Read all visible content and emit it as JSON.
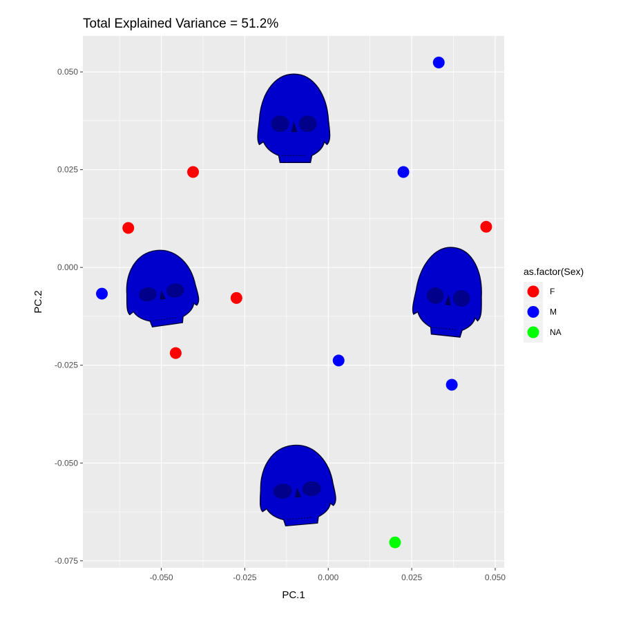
{
  "chart_data": {
    "type": "scatter",
    "title": "Total Explained Variance = 51.2%",
    "xlabel": "PC.1",
    "ylabel": "PC.2",
    "xlim": [
      -0.0735,
      0.0527
    ],
    "ylim": [
      -0.0768,
      0.0592
    ],
    "xticks": [
      -0.05,
      -0.025,
      0.0,
      0.025,
      0.05
    ],
    "xtick_labels": [
      "-0.050",
      "-0.025",
      "0.000",
      "0.025",
      "0.050"
    ],
    "yticks": [
      0.05,
      0.025,
      0.0,
      -0.025,
      -0.05,
      -0.075
    ],
    "ytick_labels": [
      "0.050",
      "0.025",
      "0.000",
      "-0.025",
      "-0.050",
      "-0.075"
    ],
    "grid": true,
    "legend": {
      "title": "as.factor(Sex)",
      "placement": "right",
      "entries": [
        {
          "label": "F",
          "color": "#ff0000"
        },
        {
          "label": "M",
          "color": "#0000ff"
        },
        {
          "label": "NA",
          "color": "#00ff00"
        }
      ]
    },
    "series": [
      {
        "name": "F",
        "color": "#ff0000",
        "points": [
          [
            -0.0405,
            0.0244
          ],
          [
            -0.0599,
            0.0101
          ],
          [
            -0.0275,
            -0.0078
          ],
          [
            -0.0457,
            -0.0219
          ],
          [
            0.0473,
            0.0104
          ]
        ]
      },
      {
        "name": "M",
        "color": "#0000ff",
        "points": [
          [
            -0.0678,
            -0.0067
          ],
          [
            0.0331,
            0.0524
          ],
          [
            0.0225,
            0.0244
          ],
          [
            0.0031,
            -0.0238
          ],
          [
            0.037,
            -0.03
          ]
        ]
      },
      {
        "name": "NA",
        "color": "#00ff00",
        "points": [
          [
            0.02,
            -0.0703
          ]
        ]
      }
    ],
    "skull_images": [
      {
        "view": "front",
        "center": [
          -0.0103,
          0.0385
        ]
      },
      {
        "view": "left-oblique",
        "center": [
          -0.0502,
          -0.0049
        ]
      },
      {
        "view": "right-oblique",
        "center": [
          0.0362,
          -0.0058
        ]
      },
      {
        "view": "low-oblique",
        "center": [
          -0.0095,
          -0.0553
        ]
      }
    ],
    "skull_color": "#0000cc"
  }
}
